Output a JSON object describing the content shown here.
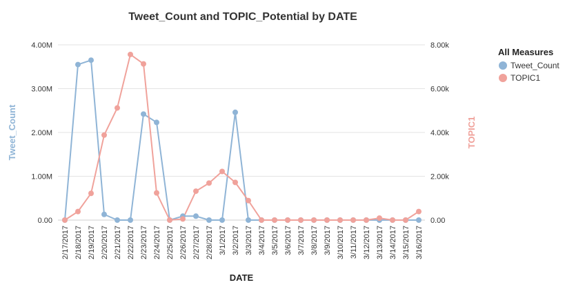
{
  "chart_data": {
    "type": "line",
    "title": "Tweet_Count and TOPIC_Potential by DATE",
    "xlabel": "DATE",
    "ylabel_left": "Tweet_Count",
    "ylabel_right": "TOPIC1",
    "ylim_left": [
      0,
      4000000
    ],
    "ylim_right": [
      0,
      8000
    ],
    "yticks_left": [
      "0.00",
      "1.00M",
      "2.00M",
      "3.00M",
      "4.00M"
    ],
    "yticks_right": [
      "0.00",
      "2.00k",
      "4.00k",
      "6.00k",
      "8.00k"
    ],
    "grid": true,
    "legend_title": "All Measures",
    "legend_position": "top-right",
    "categories": [
      "2/17/2017",
      "2/18/2017",
      "2/19/2017",
      "2/20/2017",
      "2/21/2017",
      "2/22/2017",
      "2/23/2017",
      "2/24/2017",
      "2/25/2017",
      "2/26/2017",
      "2/27/2017",
      "2/28/2017",
      "3/1/2017",
      "3/2/2017",
      "3/3/2017",
      "3/4/2017",
      "3/5/2017",
      "3/6/2017",
      "3/7/2017",
      "3/8/2017",
      "3/9/2017",
      "3/10/2017",
      "3/11/2017",
      "3/12/2017",
      "3/13/2017",
      "3/14/2017",
      "3/15/2017",
      "3/16/2017"
    ],
    "series": [
      {
        "name": "Tweet_Count",
        "axis": "left",
        "color": "#8fb4d6",
        "values": [
          0,
          3550000,
          3650000,
          130000,
          0,
          0,
          2420000,
          2230000,
          0,
          90000,
          90000,
          0,
          0,
          2460000,
          0,
          0,
          0,
          0,
          0,
          0,
          0,
          0,
          0,
          0,
          0,
          0,
          0,
          0
        ]
      },
      {
        "name": "TOPIC1",
        "axis": "right",
        "color": "#f0a29b",
        "values": [
          0,
          390,
          1220,
          3880,
          5120,
          7560,
          7130,
          1240,
          0,
          50,
          1320,
          1690,
          2220,
          1720,
          890,
          0,
          0,
          0,
          0,
          0,
          0,
          0,
          0,
          0,
          90,
          0,
          0,
          390
        ]
      }
    ]
  }
}
